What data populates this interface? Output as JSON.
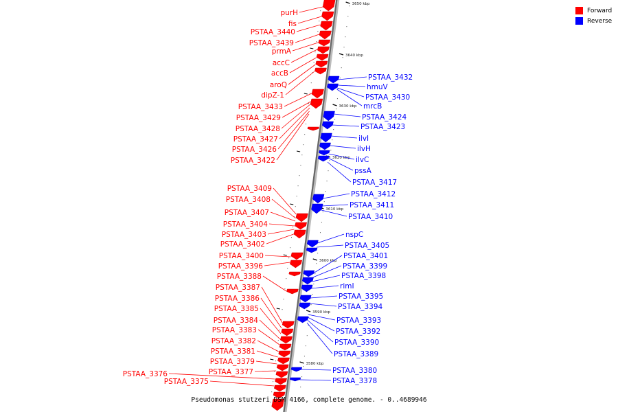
{
  "legend": {
    "forward": {
      "label": "Forward",
      "color": "#ff0000"
    },
    "reverse": {
      "label": "Reverse",
      "color": "#0000ff"
    }
  },
  "caption": "Pseudomonas stutzeri DSM 4166, complete genome. - 0..4689946",
  "ticks": [
    "3650 kbp",
    "3640 kbp",
    "3630 kbp",
    "3620 kbp",
    "3610 kbp",
    "3600 kbp",
    "3590 kbp",
    "3580 kbp"
  ],
  "forward_genes": [
    "purH",
    "fis",
    "PSTAA_3440",
    "PSTAA_3439",
    "prmA",
    "accC",
    "accB",
    "aroQ",
    "dipZ-1",
    "PSTAA_3433",
    "PSTAA_3429",
    "PSTAA_3428",
    "PSTAA_3427",
    "PSTAA_3426",
    "PSTAA_3422",
    "PSTAA_3409",
    "PSTAA_3408",
    "PSTAA_3407",
    "PSTAA_3404",
    "PSTAA_3403",
    "PSTAA_3402",
    "PSTAA_3400",
    "PSTAA_3396",
    "PSTAA_3388",
    "PSTAA_3387",
    "PSTAA_3386",
    "PSTAA_3385",
    "PSTAA_3384",
    "PSTAA_3383",
    "PSTAA_3382",
    "PSTAA_3381",
    "PSTAA_3379",
    "PSTAA_3377",
    "PSTAA_3376",
    "PSTAA_3375"
  ],
  "reverse_genes": [
    "PSTAA_3432",
    "hmuV",
    "PSTAA_3430",
    "mrcB",
    "PSTAA_3424",
    "PSTAA_3423",
    "ilvI",
    "ilvH",
    "ilvC",
    "pssA",
    "PSTAA_3417",
    "PSTAA_3412",
    "PSTAA_3411",
    "PSTAA_3410",
    "nspC",
    "PSTAA_3405",
    "PSTAA_3401",
    "PSTAA_3399",
    "PSTAA_3398",
    "rimI",
    "PSTAA_3395",
    "PSTAA_3394",
    "PSTAA_3393",
    "PSTAA_3392",
    "PSTAA_3390",
    "PSTAA_3389",
    "PSTAA_3380",
    "PSTAA_3378"
  ]
}
